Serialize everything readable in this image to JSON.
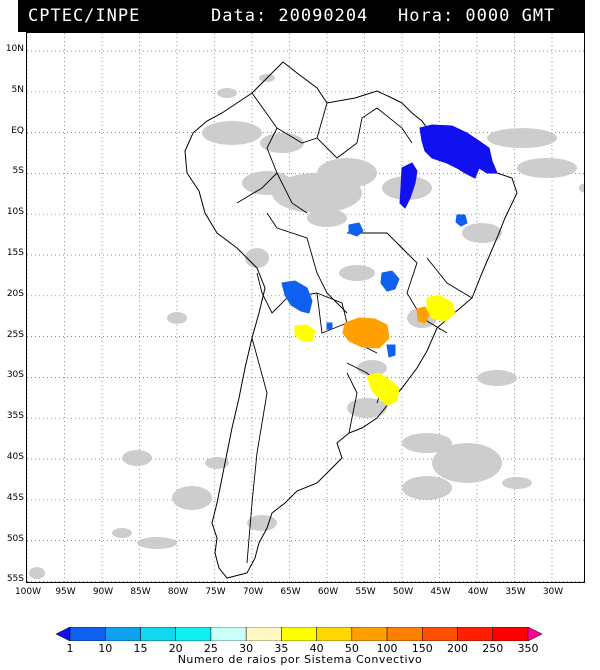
{
  "header": {
    "source": "CPTEC/INPE",
    "date_label": "Data: 20090204",
    "hour_label": "Hora: 0000 GMT"
  },
  "lat_ticks": [
    "10N",
    "5N",
    "EQ",
    "5S",
    "10S",
    "15S",
    "20S",
    "25S",
    "30S",
    "35S",
    "40S",
    "45S",
    "50S",
    "55S"
  ],
  "lon_ticks": [
    "100W",
    "95W",
    "90W",
    "85W",
    "80W",
    "75W",
    "70W",
    "65W",
    "60W",
    "55W",
    "50W",
    "45W",
    "40W",
    "35W",
    "30W"
  ],
  "colorbar": {
    "labels": [
      "1",
      "10",
      "15",
      "20",
      "25",
      "30",
      "35",
      "40",
      "50",
      "100",
      "150",
      "200",
      "250",
      "350"
    ],
    "colors": [
      "#1010f0",
      "#1060f0",
      "#10a0f0",
      "#10d8f0",
      "#10f0f0",
      "#c8fff8",
      "#fff8c0",
      "#ffff00",
      "#ffd800",
      "#ffa000",
      "#ff8000",
      "#ff5000",
      "#ff2000",
      "#ff0000",
      "#ff0090"
    ],
    "title": "Numero de raios por Sistema Convectivo"
  },
  "map": {
    "region": "South America",
    "lat_range": [
      -56,
      12
    ],
    "lon_range": [
      -100,
      -26
    ]
  }
}
